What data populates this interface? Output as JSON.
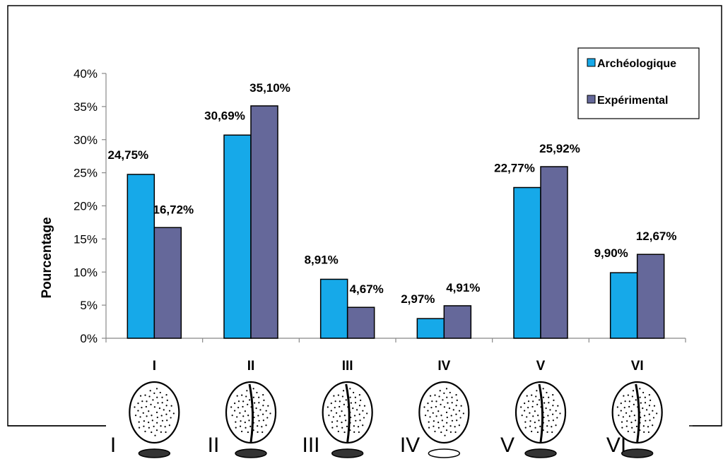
{
  "chart_data": {
    "type": "bar",
    "categories": [
      "I",
      "II",
      "III",
      "IV",
      "V",
      "VI"
    ],
    "series": [
      {
        "name": "Archéologique",
        "values": [
          24.75,
          30.69,
          8.91,
          2.97,
          22.77,
          9.9
        ],
        "labels": [
          "24,75%",
          "30,69%",
          "8,91%",
          "2,97%",
          "22,77%",
          "9,90%"
        ],
        "color": "#16a9e9"
      },
      {
        "name": "Expérimental",
        "values": [
          16.72,
          35.1,
          4.67,
          4.91,
          25.92,
          12.67
        ],
        "labels": [
          "16,72%",
          "35,10%",
          "4,67%",
          "4,91%",
          "25,92%",
          "12,67%"
        ],
        "color": "#65689a"
      }
    ],
    "ylabel": "Pourcentage",
    "ylim": [
      0,
      40
    ],
    "yticks": [
      0,
      5,
      10,
      15,
      20,
      25,
      30,
      35,
      40
    ],
    "ytick_labels": [
      "0%",
      "5%",
      "10%",
      "15%",
      "20%",
      "25%",
      "30%",
      "35%",
      "40%"
    ],
    "grid": false,
    "legend_position": "top-right"
  },
  "drawings": {
    "labels": [
      "I",
      "II",
      "III",
      "IV",
      "V",
      "VI"
    ],
    "items": [
      "scraper-flake-drawing",
      "scraper-flake-drawing",
      "scraper-flake-drawing",
      "scraper-flake-drawing",
      "scraper-flake-drawing",
      "scraper-flake-drawing"
    ]
  }
}
